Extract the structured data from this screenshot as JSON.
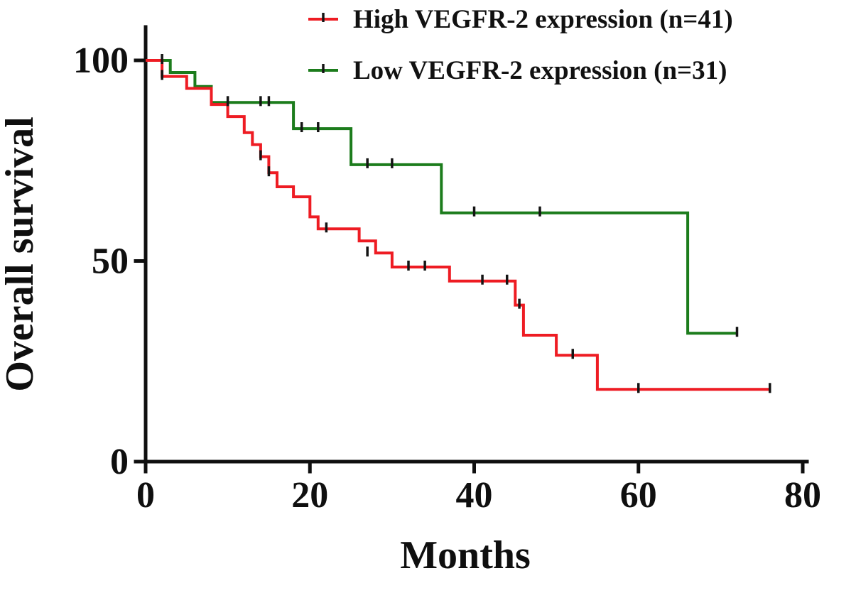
{
  "chart_data": {
    "type": "line",
    "subtype": "kaplan_meier_step_curve",
    "title": "",
    "xlabel": "Months",
    "ylabel": "Overall survival",
    "xlim": [
      0,
      80
    ],
    "ylim": [
      0,
      105
    ],
    "xticks": [
      0,
      20,
      40,
      60,
      80
    ],
    "yticks": [
      0,
      50,
      100
    ],
    "grid": "off",
    "legend_position": "top-center",
    "axis_color": "#0f0f0f",
    "censor_mark_color": "#141414",
    "series": [
      {
        "name": "High VEGFR-2 expression (n=41)",
        "n": 41,
        "color": "#ee1c23",
        "steps": [
          [
            0,
            100
          ],
          [
            2,
            96
          ],
          [
            5,
            93
          ],
          [
            8,
            89
          ],
          [
            10,
            86
          ],
          [
            12,
            82
          ],
          [
            13,
            79
          ],
          [
            14,
            76
          ],
          [
            15,
            72
          ],
          [
            16,
            68.5
          ],
          [
            18,
            66
          ],
          [
            20,
            61
          ],
          [
            21,
            58
          ],
          [
            26,
            55
          ],
          [
            28,
            52
          ],
          [
            30,
            48.5
          ],
          [
            37,
            45
          ],
          [
            45,
            39
          ],
          [
            46,
            31.5
          ],
          [
            50,
            26.5
          ],
          [
            55,
            18
          ],
          [
            76,
            18
          ]
        ],
        "censor_marks": [
          [
            2,
            96
          ],
          [
            14,
            76
          ],
          [
            15,
            72
          ],
          [
            22,
            58
          ],
          [
            27,
            52
          ],
          [
            32,
            48.5
          ],
          [
            34,
            48.5
          ],
          [
            41,
            45
          ],
          [
            44,
            45
          ],
          [
            45.5,
            39
          ],
          [
            52,
            26.5
          ],
          [
            60,
            18
          ],
          [
            76,
            18
          ]
        ]
      },
      {
        "name": "Low VEGFR-2 expression (n=31)",
        "n": 31,
        "color": "#1c7c1c",
        "steps": [
          [
            0,
            100
          ],
          [
            3,
            97
          ],
          [
            6,
            93.5
          ],
          [
            8,
            89.5
          ],
          [
            18,
            83
          ],
          [
            25,
            74
          ],
          [
            36,
            62
          ],
          [
            66,
            32
          ],
          [
            72,
            32
          ]
        ],
        "censor_marks": [
          [
            2,
            100
          ],
          [
            10,
            89.5
          ],
          [
            14,
            89.5
          ],
          [
            15,
            89.5
          ],
          [
            19,
            83
          ],
          [
            21,
            83
          ],
          [
            27,
            74
          ],
          [
            30,
            74
          ],
          [
            40,
            62
          ],
          [
            48,
            62
          ],
          [
            72,
            32
          ]
        ]
      }
    ]
  }
}
